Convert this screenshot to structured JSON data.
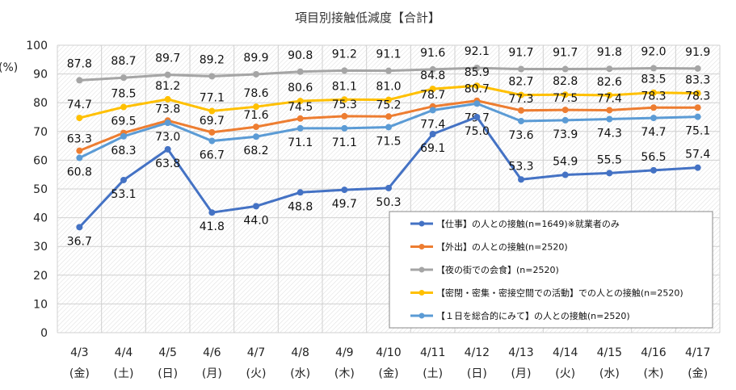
{
  "chart_data": {
    "type": "line",
    "title": "項目別接触低減度【合計】",
    "ylabel": "(%)",
    "ylim": [
      0,
      100
    ],
    "yticks": [
      0,
      10,
      20,
      30,
      40,
      50,
      60,
      70,
      80,
      90,
      100
    ],
    "grid": true,
    "legend": "bottom-right",
    "categories": [
      "4/3",
      "4/4",
      "4/5",
      "4/6",
      "4/7",
      "4/8",
      "4/9",
      "4/10",
      "4/11",
      "4/12",
      "4/13",
      "4/14",
      "4/15",
      "4/16",
      "4/17"
    ],
    "weekdays": [
      "(金)",
      "(土)",
      "(日)",
      "(月)",
      "(火)",
      "(水)",
      "(木)",
      "(金)",
      "(土)",
      "(日)",
      "(月)",
      "(火)",
      "(水)",
      "(木)",
      "(金)"
    ],
    "series": [
      {
        "name": "【仕事】の人との接触(n=1649)※就業者のみ",
        "color": "#4472C4",
        "values": [
          36.7,
          53.1,
          63.8,
          41.8,
          44.0,
          48.8,
          49.7,
          50.3,
          69.1,
          75.0,
          53.3,
          54.9,
          55.5,
          56.5,
          57.4
        ]
      },
      {
        "name": "【外出】の人との接触(n=2520)",
        "color": "#ED7D31",
        "values": [
          63.3,
          69.5,
          73.8,
          69.7,
          71.6,
          74.5,
          75.3,
          75.2,
          78.7,
          80.7,
          77.3,
          77.5,
          77.4,
          78.3,
          78.3
        ]
      },
      {
        "name": "【夜の街での会食】(n=2520)",
        "color": "#A5A5A5",
        "values": [
          87.8,
          88.7,
          89.7,
          89.2,
          89.9,
          90.8,
          91.2,
          91.1,
          91.6,
          92.1,
          91.7,
          91.7,
          91.8,
          92.0,
          91.9
        ]
      },
      {
        "name": "【密閉・密集・密接空間での活動】での人との接触(n=2520)",
        "color": "#FFC000",
        "values": [
          74.7,
          78.5,
          81.2,
          77.1,
          78.6,
          80.6,
          81.1,
          81.0,
          84.8,
          85.9,
          82.7,
          82.8,
          82.6,
          83.5,
          83.3
        ]
      },
      {
        "name": "【１日を総合的にみて】の人との接触(n=2520)",
        "color": "#5B9BD5",
        "values": [
          60.8,
          68.3,
          73.0,
          66.7,
          68.2,
          71.1,
          71.1,
          71.5,
          77.4,
          79.7,
          73.6,
          73.9,
          74.3,
          74.7,
          75.1
        ]
      }
    ]
  }
}
